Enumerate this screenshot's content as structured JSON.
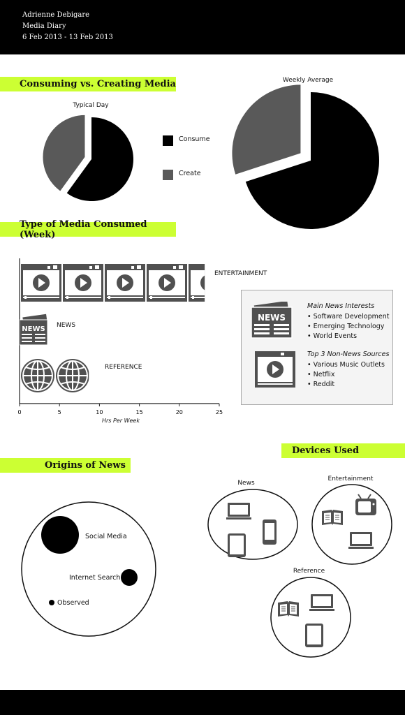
{
  "header": {
    "name": "Adrienne Debigare",
    "subtitle": "Media Diary",
    "date_range": "6 Feb 2013 - 13 Feb 2013"
  },
  "sections": {
    "consuming_vs_creating": "Consuming vs. Creating Media",
    "type_consumed": "Type of Media Consumed (Week)",
    "origins_of_news": "Origins of News",
    "devices_used": "Devices Used"
  },
  "colors": {
    "accent": "#ccff33",
    "consume": "#000000",
    "create": "#595959",
    "icon": "#505050"
  },
  "chart_data": [
    {
      "type": "pie",
      "title": "Typical Day",
      "labels": [
        "Consume",
        "Create"
      ],
      "values": [
        60,
        40
      ]
    },
    {
      "type": "pie",
      "title": "Weekly Average",
      "labels": [
        "Consume",
        "Create"
      ],
      "values": [
        70,
        30
      ]
    },
    {
      "type": "bar",
      "orientation": "horizontal",
      "categories": [
        "ENTERTAINMENT",
        "NEWS",
        "REFERENCE"
      ],
      "values": [
        23,
        3.5,
        8.5
      ],
      "xlabel": "Hrs Per Week",
      "xticks": [
        "0",
        "5",
        "10",
        "15",
        "20",
        "25"
      ],
      "xlim": [
        0,
        25
      ]
    },
    {
      "type": "scatter",
      "title": "Origins of News",
      "labels": [
        "Social Media",
        "Internet Search",
        "Observed"
      ],
      "values": [
        60,
        12,
        3
      ]
    }
  ],
  "legend": {
    "consume": "Consume",
    "create": "Create"
  },
  "info_box": {
    "news_title": "Main News Interests",
    "news_items": [
      "Software Development",
      "Emerging Technology",
      "World Events"
    ],
    "sources_title": "Top 3 Non-News Sources",
    "sources_items": [
      "Various Music Outlets",
      "Netflix",
      "Reddit"
    ],
    "news_icon_text": "NEWS"
  },
  "devices": {
    "news": {
      "label": "News",
      "icons": [
        "laptop-icon",
        "phone-icon",
        "tablet-icon"
      ]
    },
    "entertainment": {
      "label": "Entertainment",
      "icons": [
        "book-icon",
        "tv-icon",
        "laptop-icon"
      ]
    },
    "reference": {
      "label": "Reference",
      "icons": [
        "book-icon",
        "laptop-icon",
        "tablet-icon"
      ]
    }
  }
}
